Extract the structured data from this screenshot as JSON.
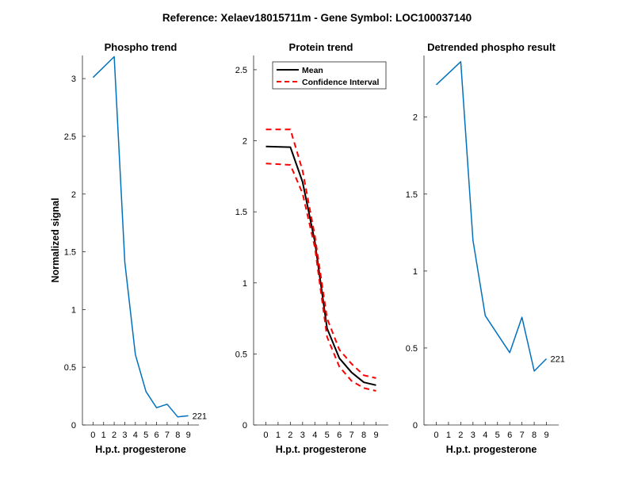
{
  "figure": {
    "suptitle": "Reference:  Xelaev18015711m - Gene Symbol:  LOC100037140"
  },
  "chart_data": [
    {
      "type": "line",
      "title": "Phospho trend",
      "xlabel": "H.p.t. progesterone",
      "ylabel": "Normalized signal",
      "xlim": [
        -1,
        10
      ],
      "ylim": [
        0,
        3.2
      ],
      "xticks": [
        0,
        1,
        2,
        3,
        4,
        5,
        6,
        7,
        8,
        9
      ],
      "yticks": [
        0,
        0.5,
        1,
        1.5,
        2,
        2.5,
        3
      ],
      "x": [
        0,
        1,
        2,
        3,
        4,
        5,
        6,
        7,
        8,
        9
      ],
      "series": [
        {
          "values": [
            3.01,
            3.19,
            1.41,
            0.61,
            0.29,
            0.15,
            0.18,
            0.07,
            0.08
          ],
          "x": [
            0,
            2,
            3,
            4,
            5,
            6,
            7,
            8,
            9
          ],
          "color": "#0072BD"
        }
      ],
      "annotation": {
        "text": "221",
        "x": 9,
        "y": 0.08
      },
      "grid": false
    },
    {
      "type": "line",
      "title": "Protein trend",
      "xlabel": "H.p.t. progesterone",
      "ylabel": "",
      "xlim": [
        -1,
        10
      ],
      "ylim": [
        0,
        2.6
      ],
      "xticks": [
        0,
        1,
        2,
        3,
        4,
        5,
        6,
        7,
        8,
        9
      ],
      "yticks": [
        0,
        0.5,
        1,
        1.5,
        2,
        2.5
      ],
      "x": [
        0,
        1,
        2,
        3,
        4,
        5,
        6,
        7,
        8,
        9
      ],
      "series": [
        {
          "name": "Mean",
          "values": [
            1.96,
            1.955,
            1.71,
            1.29,
            0.68,
            0.47,
            0.37,
            0.3,
            0.28
          ],
          "x": [
            0,
            2,
            3,
            4,
            5,
            6,
            7,
            8,
            9
          ],
          "color": "#000000",
          "style": "solid"
        },
        {
          "name": "Confidence Interval",
          "values": [
            2.08,
            2.08,
            1.79,
            1.33,
            0.75,
            0.53,
            0.43,
            0.35,
            0.33
          ],
          "x": [
            0,
            2,
            3,
            4,
            5,
            6,
            7,
            8,
            9
          ],
          "color": "#FF0000",
          "style": "dashed"
        },
        {
          "values": [
            1.84,
            1.83,
            1.63,
            1.25,
            0.62,
            0.41,
            0.31,
            0.26,
            0.24
          ],
          "x": [
            0,
            2,
            3,
            4,
            5,
            6,
            7,
            8,
            9
          ],
          "color": "#FF0000",
          "style": "dashed"
        }
      ],
      "legend": {
        "position": "top-left",
        "entries": [
          "Mean",
          "Confidence Interval"
        ]
      },
      "grid": false
    },
    {
      "type": "line",
      "title": "Detrended phospho result",
      "xlabel": "H.p.t. progesterone",
      "ylabel": "",
      "xlim": [
        -1,
        10
      ],
      "ylim": [
        0,
        2.4
      ],
      "xticks": [
        0,
        1,
        2,
        3,
        4,
        5,
        6,
        7,
        8,
        9
      ],
      "yticks": [
        0,
        0.5,
        1,
        1.5,
        2
      ],
      "x": [
        0,
        1,
        2,
        3,
        4,
        5,
        6,
        7,
        8,
        9
      ],
      "series": [
        {
          "values": [
            2.21,
            2.36,
            1.2,
            0.71,
            0.59,
            0.47,
            0.7,
            0.35,
            0.43
          ],
          "x": [
            0,
            2,
            3,
            4,
            5,
            6,
            7,
            8,
            9
          ],
          "color": "#0072BD"
        }
      ],
      "annotation": {
        "text": "221",
        "x": 9,
        "y": 0.43
      },
      "grid": false
    }
  ]
}
